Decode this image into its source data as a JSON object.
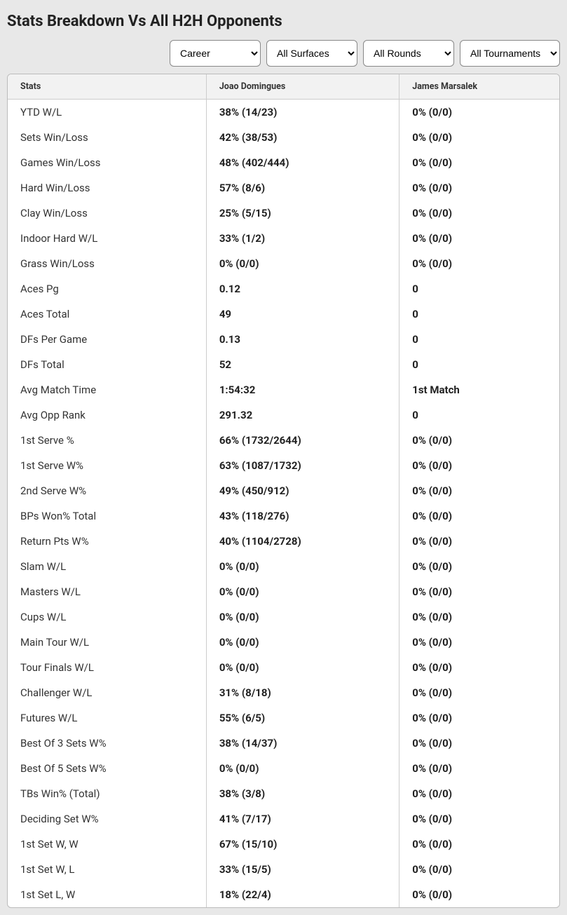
{
  "title": "Stats Breakdown Vs All H2H Opponents",
  "filters": {
    "period": {
      "selected": "Career",
      "options": [
        "Career"
      ]
    },
    "surface": {
      "selected": "All Surfaces",
      "options": [
        "All Surfaces"
      ]
    },
    "rounds": {
      "selected": "All Rounds",
      "options": [
        "All Rounds"
      ]
    },
    "tournaments": {
      "selected": "All Tournaments",
      "options": [
        "All Tournaments"
      ]
    }
  },
  "columns": {
    "stats": "Stats",
    "player1": "Joao Domingues",
    "player2": "James Marsalek"
  },
  "rows": [
    {
      "stat": "YTD W/L",
      "p1": "38% (14/23)",
      "p2": "0% (0/0)"
    },
    {
      "stat": "Sets Win/Loss",
      "p1": "42% (38/53)",
      "p2": "0% (0/0)"
    },
    {
      "stat": "Games Win/Loss",
      "p1": "48% (402/444)",
      "p2": "0% (0/0)"
    },
    {
      "stat": "Hard Win/Loss",
      "p1": "57% (8/6)",
      "p2": "0% (0/0)"
    },
    {
      "stat": "Clay Win/Loss",
      "p1": "25% (5/15)",
      "p2": "0% (0/0)"
    },
    {
      "stat": "Indoor Hard W/L",
      "p1": "33% (1/2)",
      "p2": "0% (0/0)"
    },
    {
      "stat": "Grass Win/Loss",
      "p1": "0% (0/0)",
      "p2": "0% (0/0)"
    },
    {
      "stat": "Aces Pg",
      "p1": "0.12",
      "p2": "0"
    },
    {
      "stat": "Aces Total",
      "p1": "49",
      "p2": "0"
    },
    {
      "stat": "DFs Per Game",
      "p1": "0.13",
      "p2": "0"
    },
    {
      "stat": "DFs Total",
      "p1": "52",
      "p2": "0"
    },
    {
      "stat": "Avg Match Time",
      "p1": "1:54:32",
      "p2": "1st Match"
    },
    {
      "stat": "Avg Opp Rank",
      "p1": "291.32",
      "p2": "0"
    },
    {
      "stat": "1st Serve %",
      "p1": "66% (1732/2644)",
      "p2": "0% (0/0)"
    },
    {
      "stat": "1st Serve W%",
      "p1": "63% (1087/1732)",
      "p2": "0% (0/0)"
    },
    {
      "stat": "2nd Serve W%",
      "p1": "49% (450/912)",
      "p2": "0% (0/0)"
    },
    {
      "stat": "BPs Won% Total",
      "p1": "43% (118/276)",
      "p2": "0% (0/0)"
    },
    {
      "stat": "Return Pts W%",
      "p1": "40% (1104/2728)",
      "p2": "0% (0/0)"
    },
    {
      "stat": "Slam W/L",
      "p1": "0% (0/0)",
      "p2": "0% (0/0)"
    },
    {
      "stat": "Masters W/L",
      "p1": "0% (0/0)",
      "p2": "0% (0/0)"
    },
    {
      "stat": "Cups W/L",
      "p1": "0% (0/0)",
      "p2": "0% (0/0)"
    },
    {
      "stat": "Main Tour W/L",
      "p1": "0% (0/0)",
      "p2": "0% (0/0)"
    },
    {
      "stat": "Tour Finals W/L",
      "p1": "0% (0/0)",
      "p2": "0% (0/0)"
    },
    {
      "stat": "Challenger W/L",
      "p1": "31% (8/18)",
      "p2": "0% (0/0)"
    },
    {
      "stat": "Futures W/L",
      "p1": "55% (6/5)",
      "p2": "0% (0/0)"
    },
    {
      "stat": "Best Of 3 Sets W%",
      "p1": "38% (14/37)",
      "p2": "0% (0/0)"
    },
    {
      "stat": "Best Of 5 Sets W%",
      "p1": "0% (0/0)",
      "p2": "0% (0/0)"
    },
    {
      "stat": "TBs Win% (Total)",
      "p1": "38% (3/8)",
      "p2": "0% (0/0)"
    },
    {
      "stat": "Deciding Set W%",
      "p1": "41% (7/17)",
      "p2": "0% (0/0)"
    },
    {
      "stat": "1st Set W, W",
      "p1": "67% (15/10)",
      "p2": "0% (0/0)"
    },
    {
      "stat": "1st Set W, L",
      "p1": "33% (15/5)",
      "p2": "0% (0/0)"
    },
    {
      "stat": "1st Set L, W",
      "p1": "18% (22/4)",
      "p2": "0% (0/0)"
    }
  ]
}
